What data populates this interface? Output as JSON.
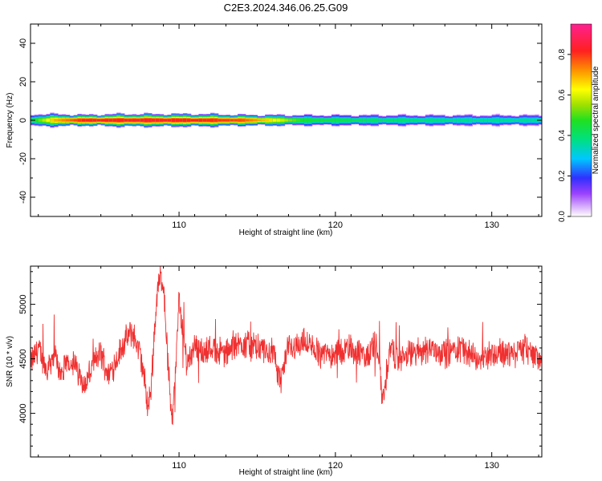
{
  "title": "C2E3.2024.346.06.25.G09",
  "chart_data": [
    {
      "type": "heatmap",
      "name": "spectrogram",
      "xlabel": "Height of straight line (km)",
      "ylabel": "Frequency (Hz)",
      "xlim": [
        100.5,
        133.2
      ],
      "ylim": [
        -50,
        50
      ],
      "xticks": [
        110,
        120,
        130
      ],
      "yticks": [
        -40,
        -20,
        0,
        20,
        40
      ],
      "colorbar": {
        "label": "Normalized spectral amplitude",
        "range": [
          0,
          0.95
        ],
        "ticks": [
          0.0,
          0.2,
          0.4,
          0.6,
          0.8
        ]
      },
      "band": [
        {
          "x": 100.5,
          "halfwidth_hz": 3,
          "peak": 0.45
        },
        {
          "x": 102,
          "halfwidth_hz": 3,
          "peak": 0.75
        },
        {
          "x": 104,
          "halfwidth_hz": 2.5,
          "peak": 0.9
        },
        {
          "x": 106,
          "halfwidth_hz": 3,
          "peak": 0.9
        },
        {
          "x": 108,
          "halfwidth_hz": 3,
          "peak": 0.92
        },
        {
          "x": 110,
          "halfwidth_hz": 3,
          "peak": 0.9
        },
        {
          "x": 112,
          "halfwidth_hz": 3,
          "peak": 0.88
        },
        {
          "x": 114,
          "halfwidth_hz": 2.5,
          "peak": 0.85
        },
        {
          "x": 116,
          "halfwidth_hz": 2.5,
          "peak": 0.7
        },
        {
          "x": 118,
          "halfwidth_hz": 2.5,
          "peak": 0.5
        },
        {
          "x": 122,
          "halfwidth_hz": 2.5,
          "peak": 0.45
        },
        {
          "x": 126,
          "halfwidth_hz": 2.5,
          "peak": 0.42
        },
        {
          "x": 130,
          "halfwidth_hz": 2.5,
          "peak": 0.4
        },
        {
          "x": 133.2,
          "halfwidth_hz": 2.5,
          "peak": 0.4
        }
      ]
    },
    {
      "type": "line",
      "name": "snr",
      "xlabel": "Height of straight line (km)",
      "ylabel": "SNR (10 * v/v)",
      "xlim": [
        100.5,
        133.2
      ],
      "ylim": [
        3600,
        5350
      ],
      "xticks": [
        110,
        120,
        130
      ],
      "yticks": [
        4000,
        4500,
        5000
      ],
      "color": "#f03030",
      "x": [
        100.5,
        101,
        101.5,
        102,
        102.5,
        103,
        103.5,
        104,
        104.5,
        105,
        105.5,
        106,
        106.5,
        107,
        107.5,
        107.8,
        108,
        108.2,
        108.4,
        108.6,
        108.8,
        109,
        109.2,
        109.4,
        109.6,
        109.8,
        110,
        110.2,
        110.5,
        111,
        111.5,
        112,
        113,
        114,
        115,
        116,
        116.5,
        117,
        118,
        119,
        120,
        121,
        122,
        122.5,
        122.8,
        123,
        123.5,
        124,
        125,
        126,
        127,
        128,
        129,
        130,
        131,
        132,
        133.2
      ],
      "y": [
        4450,
        4600,
        4400,
        4550,
        4350,
        4500,
        4400,
        4250,
        4450,
        4550,
        4350,
        4500,
        4650,
        4750,
        4550,
        4300,
        4050,
        4200,
        4700,
        5100,
        5250,
        5200,
        4700,
        4150,
        3950,
        4450,
        5050,
        4800,
        4450,
        4650,
        4550,
        4600,
        4550,
        4650,
        4600,
        4550,
        4300,
        4600,
        4650,
        4550,
        4550,
        4600,
        4500,
        4650,
        4550,
        4100,
        4600,
        4500,
        4550,
        4600,
        4550,
        4600,
        4500,
        4550,
        4550,
        4600,
        4500
      ],
      "noise_amplitude": 110
    }
  ]
}
